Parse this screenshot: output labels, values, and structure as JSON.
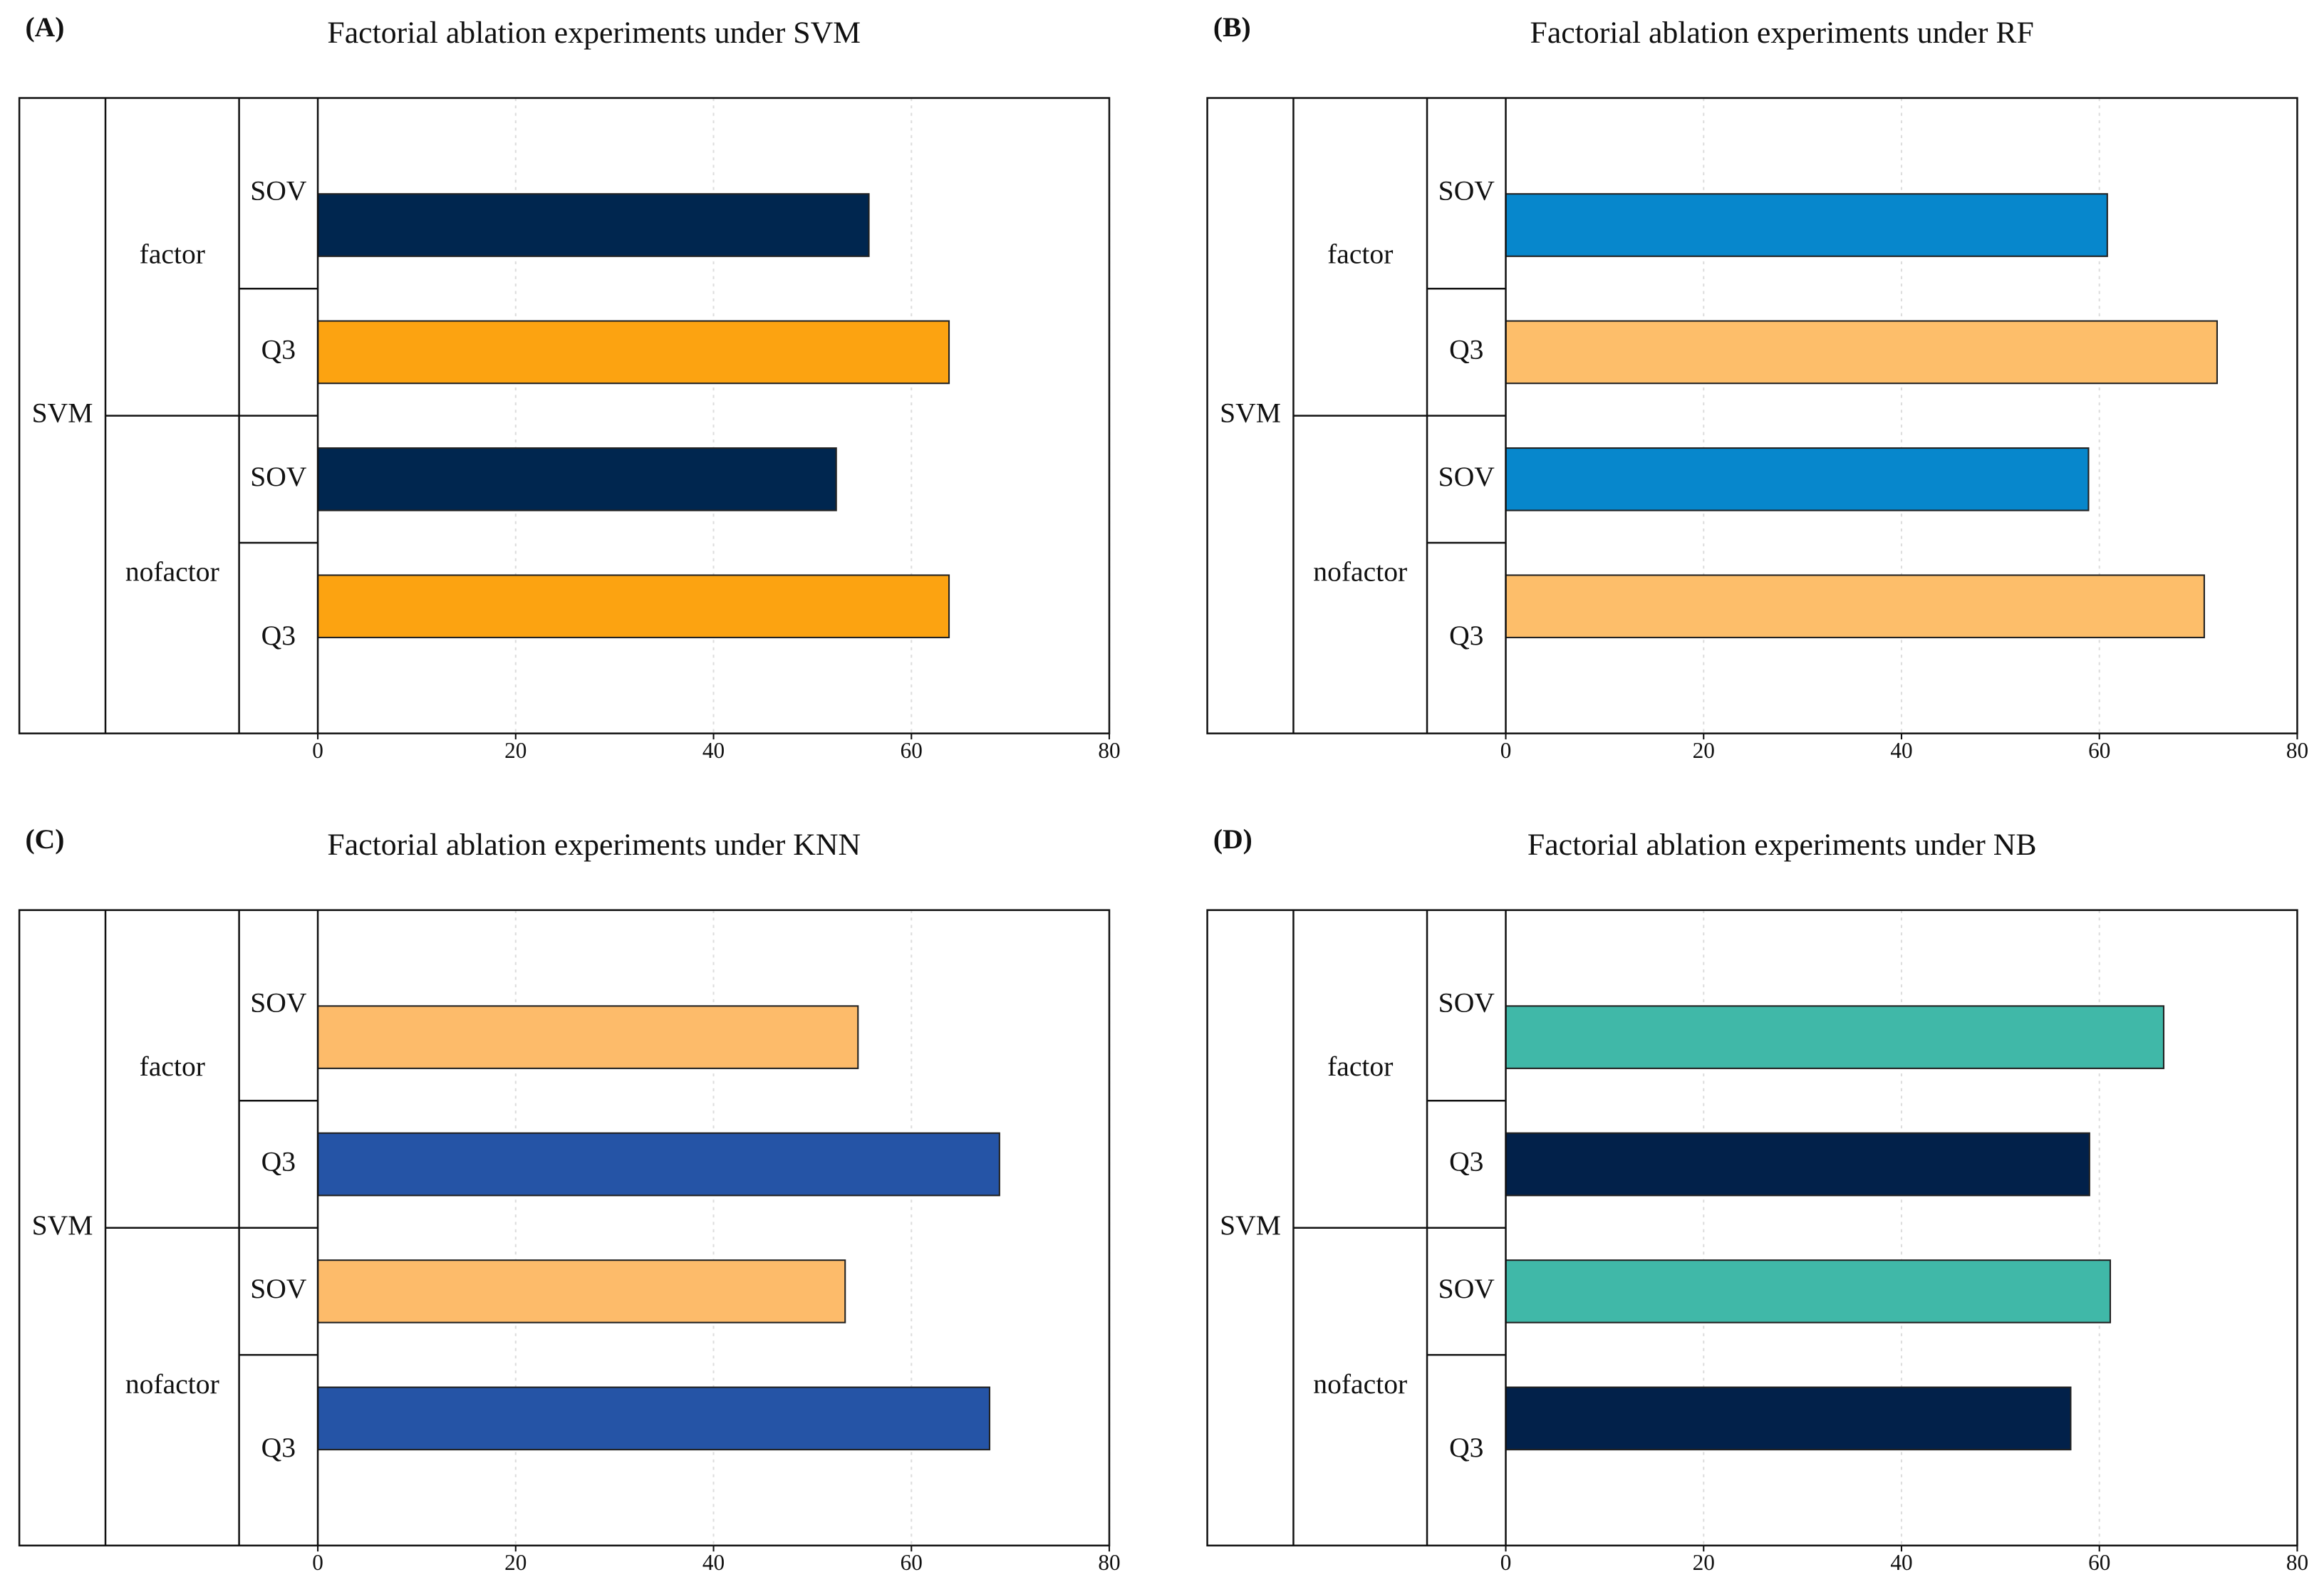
{
  "chart_data": [
    {
      "type": "bar",
      "orientation": "horizontal",
      "panel_label": "(A)",
      "title": "Factorial ablation experiments under SVM",
      "outer_group": "SVM",
      "groups": [
        "factor",
        "nofactor"
      ],
      "categories": [
        "SOV",
        "Q3",
        "SOV",
        "Q3"
      ],
      "values": [
        55.7,
        63.8,
        52.4,
        63.8
      ],
      "colors": [
        "#00264f",
        "#fca311",
        "#00264f",
        "#fca311"
      ],
      "xlim": [
        0,
        80
      ],
      "xticks": [
        0,
        20,
        40,
        60,
        80
      ],
      "grid": true
    },
    {
      "type": "bar",
      "orientation": "horizontal",
      "panel_label": "(B)",
      "title": "Factorial ablation experiments under RF",
      "outer_group": "SVM",
      "groups": [
        "factor",
        "nofactor"
      ],
      "categories": [
        "SOV",
        "Q3",
        "SOV",
        "Q3"
      ],
      "values": [
        60.8,
        71.9,
        58.9,
        70.6
      ],
      "colors": [
        "#0787cc",
        "#fdbe6a",
        "#0787cc",
        "#fdbe6a"
      ],
      "xlim": [
        0,
        80
      ],
      "xticks": [
        0,
        20,
        40,
        60,
        80
      ],
      "grid": true
    },
    {
      "type": "bar",
      "orientation": "horizontal",
      "panel_label": "(C)",
      "title": "Factorial ablation experiments under KNN",
      "outer_group": "SVM",
      "groups": [
        "factor",
        "nofactor"
      ],
      "categories": [
        "SOV",
        "Q3",
        "SOV",
        "Q3"
      ],
      "values": [
        54.6,
        68.9,
        53.3,
        67.9
      ],
      "colors": [
        "#fdbb6a",
        "#2554a6",
        "#fdbb6a",
        "#2554a6"
      ],
      "xlim": [
        0,
        80
      ],
      "xticks": [
        0,
        20,
        40,
        60,
        80
      ],
      "grid": true
    },
    {
      "type": "bar",
      "orientation": "horizontal",
      "panel_label": "(D)",
      "title": "Factorial ablation experiments under NB",
      "outer_group": "SVM",
      "groups": [
        "factor",
        "nofactor"
      ],
      "categories": [
        "SOV",
        "Q3",
        "SOV",
        "Q3"
      ],
      "values": [
        66.5,
        59.0,
        61.1,
        57.1
      ],
      "colors": [
        "#40b8a8",
        "#02214a",
        "#40b8a8",
        "#02214a"
      ],
      "xlim": [
        0,
        80
      ],
      "xticks": [
        0,
        20,
        40,
        60,
        80
      ],
      "grid": true
    }
  ]
}
